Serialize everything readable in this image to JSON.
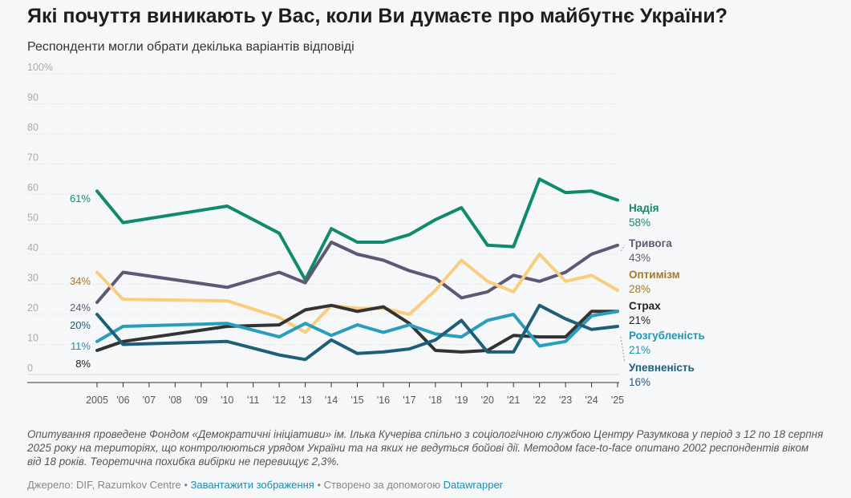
{
  "title": "Які почуття виникають у Вас, коли Ви думаєте про майбутнє України?",
  "subtitle": "Респонденти могли обрати декілька варіантів відповіді",
  "notes": "Опитування проведене Фондом «Демократичні ініціативи» ім. Ілька Кучеріва спільно з соціологічною службою Центру Разумкова у період з 12 по 18 серпня 2025 року на територіях, що контролюються урядом України та на яких не ведуться бойові дії. Методом face-to-face опитано 2002 респондентів віком від 18 років. Теоретична похибка вибірки не перевищує 2,3%.",
  "footer": {
    "source_prefix": "Джерело: DIF, Razumkov Centre",
    "sep": " • ",
    "download_label": "Завантажити зображення",
    "created_label": "Створено за допомогою",
    "datawrapper_label": "Datawrapper"
  },
  "chart_data": {
    "type": "line",
    "title": "Які почуття виникають у Вас, коли Ви думаєте про майбутнє України?",
    "subtitle": "Респонденти могли обрати декілька варіантів відповіді",
    "ylim": [
      0,
      100
    ],
    "y_ticks": [
      0,
      10,
      20,
      30,
      40,
      50,
      60,
      70,
      80,
      90,
      100
    ],
    "y_tick_labels": [
      "0",
      "10",
      "20",
      "30",
      "40",
      "50",
      "60",
      "70",
      "80",
      "90",
      "100%"
    ],
    "x_ticks": [
      2005,
      2006,
      2007,
      2008,
      2009,
      2010,
      2011,
      2012,
      2013,
      2014,
      2015,
      2016,
      2017,
      2018,
      2019,
      2020,
      2021,
      2022,
      2023,
      2024,
      2025
    ],
    "x_tick_labels": [
      "2005",
      "'06",
      "'07",
      "'08",
      "'09",
      "'10",
      "'11",
      "'12",
      "'13",
      "'14",
      "'15",
      "'16",
      "'17",
      "'18",
      "'19",
      "'20",
      "'21",
      "'22",
      "'23",
      "'24",
      "'25"
    ],
    "grid": true,
    "series": [
      {
        "name": "Надія",
        "color": "#0f8a6e",
        "start_label": "61%",
        "end_label": "58%",
        "x": [
          2005,
          2006,
          2010,
          2012,
          2013,
          2014,
          2015,
          2016,
          2017,
          2018,
          2019,
          2020,
          2021,
          2022,
          2023,
          2024,
          2025
        ],
        "values": [
          61,
          50.5,
          56,
          47,
          31.5,
          48.5,
          44,
          44,
          46.5,
          51.5,
          55.5,
          43,
          42.5,
          65,
          60.5,
          61,
          58
        ]
      },
      {
        "name": "Тривога",
        "color": "#5e5775",
        "start_label": "24%",
        "end_label": "43%",
        "x": [
          2005,
          2006,
          2010,
          2012,
          2013,
          2014,
          2015,
          2016,
          2017,
          2018,
          2019,
          2020,
          2021,
          2022,
          2023,
          2024,
          2025
        ],
        "values": [
          24,
          34,
          29,
          34,
          30.5,
          44,
          40,
          38,
          34.5,
          32,
          25.5,
          27.5,
          33,
          31,
          34,
          40,
          43
        ]
      },
      {
        "name": "Оптимізм",
        "color": "#f9cd7d",
        "start_label": "34%",
        "end_label": "28%",
        "x": [
          2005,
          2006,
          2010,
          2012,
          2013,
          2014,
          2015,
          2016,
          2017,
          2018,
          2019,
          2020,
          2021,
          2022,
          2023,
          2024,
          2025
        ],
        "values": [
          34,
          25,
          24.5,
          19,
          14,
          23,
          22,
          22,
          20,
          28,
          38,
          31,
          27.5,
          40,
          31,
          33,
          28
        ]
      },
      {
        "name": "Страх",
        "color": "#333333",
        "start_label": "8%",
        "end_label": "21%",
        "x": [
          2005,
          2006,
          2010,
          2012,
          2013,
          2014,
          2015,
          2016,
          2017,
          2018,
          2019,
          2020,
          2021,
          2022,
          2023,
          2024,
          2025
        ],
        "values": [
          8,
          11,
          16,
          16.5,
          21.5,
          23,
          21,
          22.5,
          17,
          8,
          7.5,
          8,
          13,
          12.5,
          12.5,
          21,
          21
        ]
      },
      {
        "name": "Розгубленість",
        "color": "#2a9cbd",
        "start_label": "11%",
        "end_label": "21%",
        "x": [
          2005,
          2006,
          2010,
          2012,
          2013,
          2014,
          2015,
          2016,
          2017,
          2018,
          2019,
          2020,
          2021,
          2022,
          2023,
          2024,
          2025
        ],
        "values": [
          11,
          16,
          17,
          12.5,
          17,
          13,
          16.5,
          14,
          16.5,
          13.5,
          12.5,
          18,
          20,
          9.5,
          11,
          19.5,
          21
        ]
      },
      {
        "name": "Упевненість",
        "color": "#1e5f78",
        "start_label": "20%",
        "end_label": "16%",
        "x": [
          2005,
          2006,
          2010,
          2012,
          2013,
          2014,
          2015,
          2016,
          2017,
          2018,
          2019,
          2020,
          2021,
          2022,
          2023,
          2024,
          2025
        ],
        "values": [
          20,
          10,
          11,
          6.5,
          5,
          11.5,
          7,
          7.5,
          8.5,
          11.5,
          18,
          7.5,
          7.5,
          23,
          18.5,
          15,
          16
        ]
      }
    ]
  }
}
